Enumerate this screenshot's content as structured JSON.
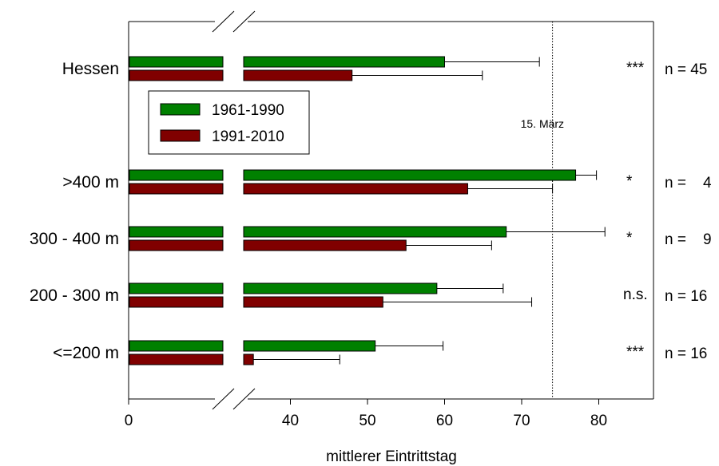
{
  "chart_data": {
    "type": "bar",
    "orientation": "horizontal",
    "axis_break": true,
    "categories": [
      "Hessen",
      ">400 m",
      "300 - 400 m",
      "200 - 300 m",
      "<=200 m"
    ],
    "series": [
      {
        "name": "1961-1990",
        "color": "#008000",
        "values": [
          60,
          77,
          68,
          59,
          51
        ],
        "error_upper": [
          72.3,
          79.7,
          80.8,
          67.6,
          59.8
        ]
      },
      {
        "name": "1991-2010",
        "color": "#800000",
        "values": [
          48,
          63,
          55,
          52,
          35.2
        ],
        "error_upper": [
          64.9,
          74.0,
          66.1,
          71.3,
          46.4
        ]
      }
    ],
    "significance": [
      "***",
      "*",
      "*",
      "n.s.",
      "***"
    ],
    "n_labels": [
      "n = 45",
      "n =    4",
      "n =    9",
      "n = 16",
      "n = 16"
    ],
    "x_ticks": [
      "0",
      "40",
      "50",
      "60",
      "70",
      "80"
    ],
    "xlabel": "mittlerer Eintrittstag",
    "reference_line": {
      "value": 74,
      "label": "15. März",
      "style": "dotted"
    },
    "legend_position": "upper-left",
    "grid": false
  }
}
